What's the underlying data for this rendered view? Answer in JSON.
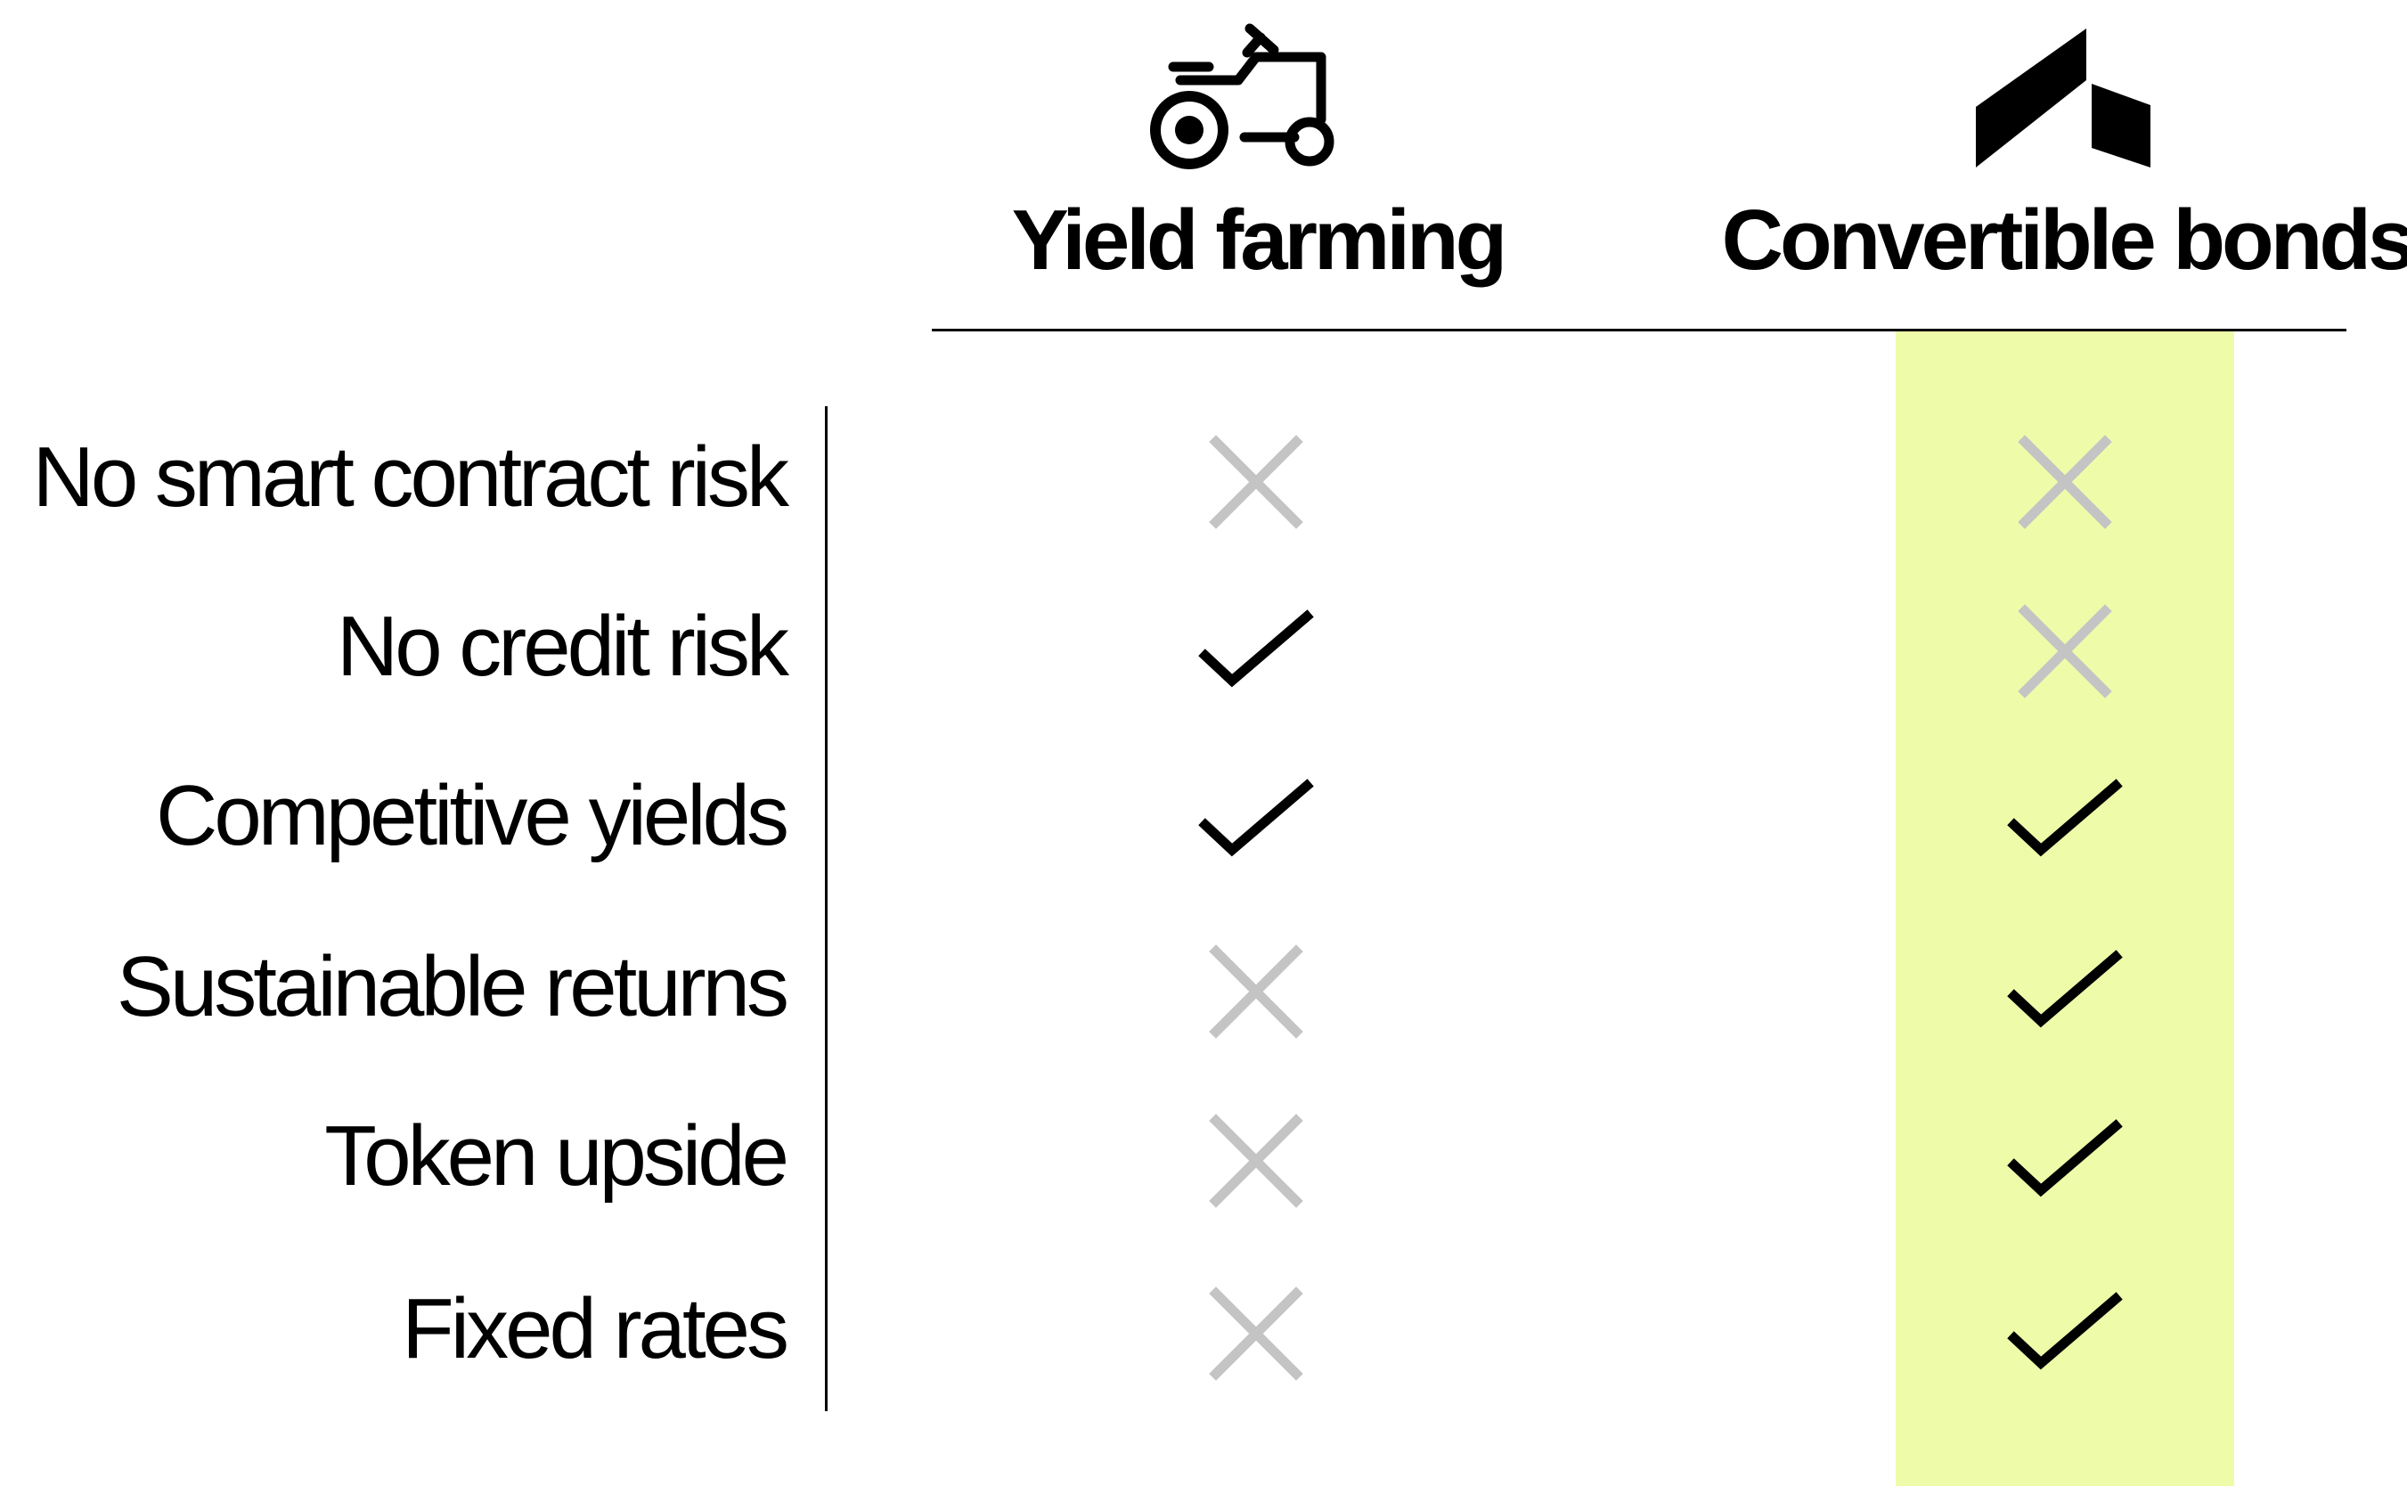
{
  "columns": [
    {
      "title": "Yield farming",
      "icon": "tractor-icon",
      "highlighted": false
    },
    {
      "title": "Convertible bonds",
      "icon": "logo-mark-icon",
      "highlighted": true
    }
  ],
  "rows": [
    {
      "label": "No smart contract risk",
      "values": [
        "cross",
        "cross"
      ]
    },
    {
      "label": "No credit risk",
      "values": [
        "check",
        "cross"
      ]
    },
    {
      "label": "Competitive yields",
      "values": [
        "check",
        "check"
      ]
    },
    {
      "label": "Sustainable returns",
      "values": [
        "cross",
        "check"
      ]
    },
    {
      "label": "Token upside",
      "values": [
        "cross",
        "check"
      ]
    },
    {
      "label": "Fixed rates",
      "values": [
        "cross",
        "check"
      ]
    }
  ],
  "colors": {
    "highlight": "#eefcaa",
    "check": "#000000",
    "cross": "#c4c4c4",
    "text": "#000000"
  }
}
